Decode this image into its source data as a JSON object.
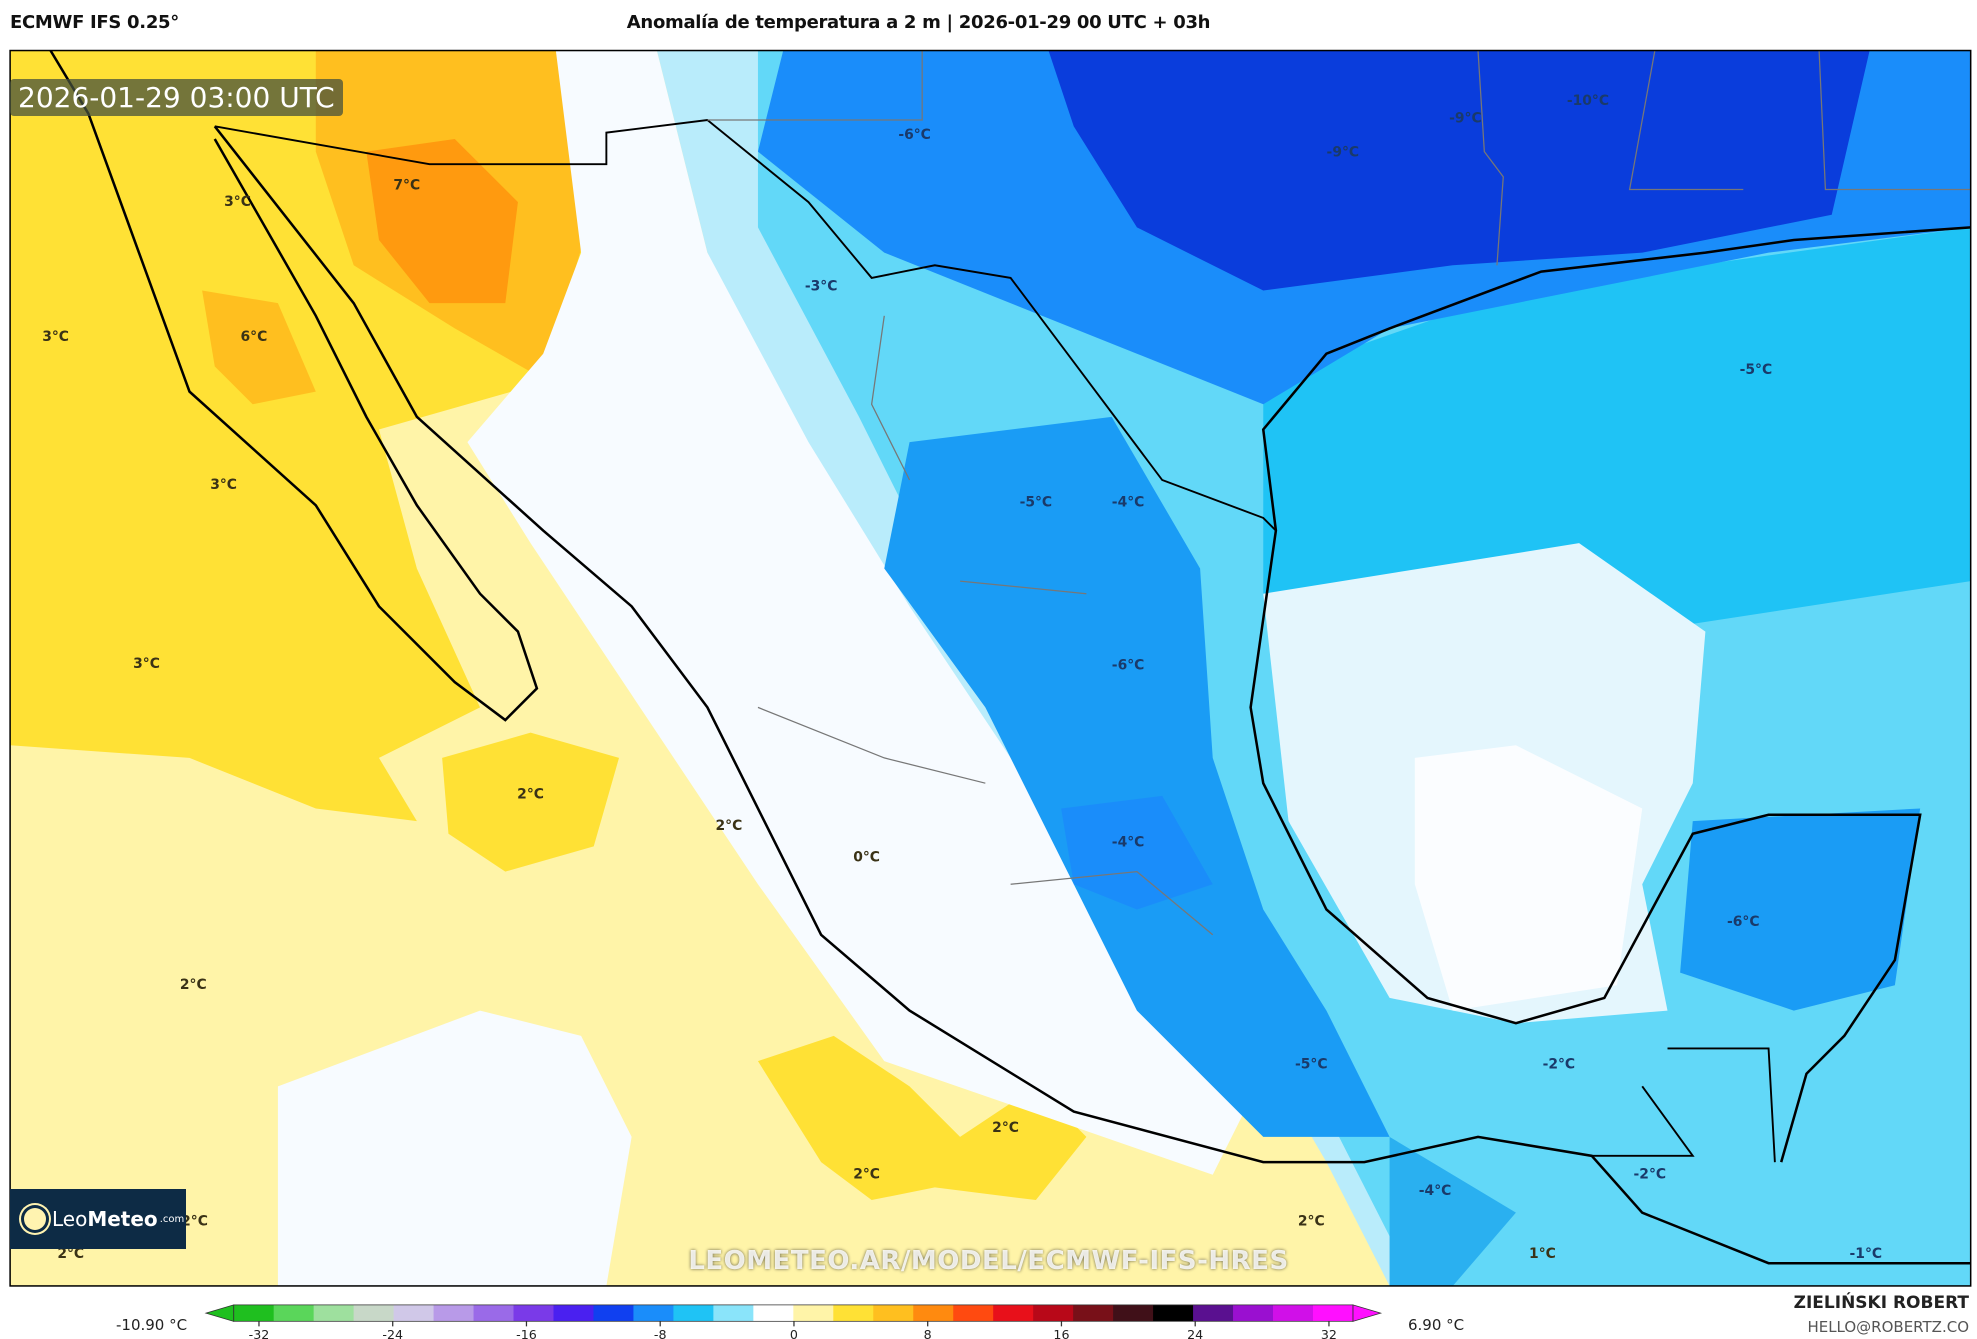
{
  "header": {
    "model": "ECMWF IFS 0.25°",
    "title": "Anomalía de temperatura a 2 m | 2026-01-29 00 UTC + 03h"
  },
  "map": {
    "valid_time": "2026-01-29 03:00 UTC",
    "watermark": "LEOMETEO.AR/MODEL/ECMWF-IFS-HRES",
    "logo": {
      "name_light": "Leo",
      "name_bold": "Meteo",
      "suffix": ".com"
    },
    "labels": [
      "3°C",
      "7°C",
      "6°C",
      "3°C",
      "3°C",
      "3°C",
      "2°C",
      "2°C",
      "0°C",
      "2°C",
      "2°C",
      "2°C",
      "2°C",
      "2°C",
      "2°C",
      "1°C",
      "-6°C",
      "-9°C",
      "-9°C",
      "-10°C",
      "-3°C",
      "-5°C",
      "-5°C",
      "-4°C",
      "-6°C",
      "-4°C",
      "-6°C",
      "-5°C",
      "-2°C",
      "-2°C",
      "-4°C",
      "-1°C"
    ],
    "colors": {
      "pale_yellow": "#fff4a8",
      "yellow": "#ffe135",
      "orange": "#ffbf1f",
      "dark_orange": "#ff9a0f",
      "white": "#f7fbff",
      "pale_blue": "#b9ecfb",
      "light_blue": "#62d8f8",
      "cyan": "#1fc3f5",
      "blue": "#1a8dfa",
      "dark_blue": "#0a3ddc",
      "coast": "#000000"
    }
  },
  "colorbar": {
    "min_label": "-10.90 °C",
    "max_label": "6.90 °C",
    "ticks": [
      "-32",
      "-24",
      "-16",
      "-8",
      "0",
      "8",
      "16",
      "24",
      "32"
    ],
    "tick_values": [
      -32,
      -24,
      -16,
      -8,
      0,
      8,
      16,
      24,
      32
    ],
    "range": [
      -35,
      35
    ],
    "colors": [
      "#1fbf1f",
      "#5ad65a",
      "#9ee09e",
      "#c8d8c8",
      "#d0c8e8",
      "#b89ae8",
      "#9a6ae8",
      "#7a3ae8",
      "#4a20f0",
      "#1040f0",
      "#1a8dfa",
      "#1fc3f5",
      "#8ae4fa",
      "#ffffff",
      "#fff4a8",
      "#ffe135",
      "#ffbf1f",
      "#ff8a0f",
      "#ff4a10",
      "#e8101a",
      "#b80818",
      "#781018",
      "#401018",
      "#000000",
      "#5a1090",
      "#9a10d0",
      "#d010e8",
      "#ff10ff"
    ]
  },
  "credits": {
    "name": "ZIELIŃSKI ROBERT",
    "email": "HELLO@ROBERTZ.CO"
  }
}
